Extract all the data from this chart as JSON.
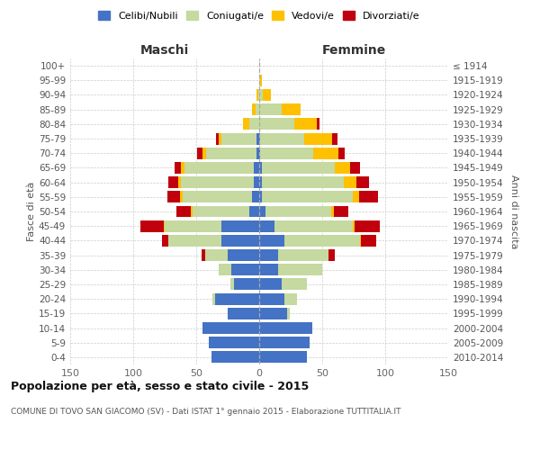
{
  "age_groups": [
    "0-4",
    "5-9",
    "10-14",
    "15-19",
    "20-24",
    "25-29",
    "30-34",
    "35-39",
    "40-44",
    "45-49",
    "50-54",
    "55-59",
    "60-64",
    "65-69",
    "70-74",
    "75-79",
    "80-84",
    "85-89",
    "90-94",
    "95-99",
    "100+"
  ],
  "birth_years": [
    "2010-2014",
    "2005-2009",
    "2000-2004",
    "1995-1999",
    "1990-1994",
    "1985-1989",
    "1980-1984",
    "1975-1979",
    "1970-1974",
    "1965-1969",
    "1960-1964",
    "1955-1959",
    "1950-1954",
    "1945-1949",
    "1940-1944",
    "1935-1939",
    "1930-1934",
    "1925-1929",
    "1920-1924",
    "1915-1919",
    "≤ 1914"
  ],
  "males": {
    "celibe": [
      38,
      40,
      45,
      25,
      35,
      20,
      22,
      25,
      30,
      30,
      8,
      6,
      4,
      4,
      2,
      2,
      0,
      0,
      0,
      0,
      0
    ],
    "coniugato": [
      0,
      0,
      0,
      0,
      2,
      3,
      10,
      18,
      42,
      45,
      45,
      55,
      58,
      55,
      40,
      28,
      8,
      3,
      1,
      0,
      0
    ],
    "vedovo": [
      0,
      0,
      0,
      0,
      0,
      0,
      0,
      0,
      0,
      1,
      1,
      2,
      2,
      3,
      3,
      2,
      5,
      3,
      1,
      0,
      0
    ],
    "divorziato": [
      0,
      0,
      0,
      0,
      0,
      0,
      0,
      3,
      5,
      18,
      12,
      10,
      8,
      5,
      4,
      2,
      0,
      0,
      0,
      0,
      0
    ]
  },
  "females": {
    "nubile": [
      38,
      40,
      42,
      22,
      20,
      18,
      15,
      15,
      20,
      12,
      5,
      2,
      2,
      2,
      1,
      1,
      0,
      0,
      0,
      0,
      0
    ],
    "coniugata": [
      0,
      0,
      0,
      2,
      10,
      20,
      35,
      40,
      60,
      62,
      52,
      72,
      65,
      58,
      42,
      35,
      28,
      18,
      3,
      1,
      0
    ],
    "vedova": [
      0,
      0,
      0,
      0,
      0,
      0,
      0,
      0,
      1,
      2,
      2,
      5,
      10,
      12,
      20,
      22,
      18,
      15,
      6,
      1,
      0
    ],
    "divorziata": [
      0,
      0,
      0,
      0,
      0,
      0,
      0,
      5,
      12,
      20,
      12,
      15,
      10,
      8,
      5,
      4,
      2,
      0,
      0,
      0,
      0
    ]
  },
  "colors": {
    "celibe": "#4472c4",
    "coniugato": "#c5d9a0",
    "vedovo": "#ffc000",
    "divorziato": "#c0000c"
  },
  "xlim": 150,
  "title": "Popolazione per età, sesso e stato civile - 2015",
  "subtitle": "COMUNE DI TOVO SAN GIACOMO (SV) - Dati ISTAT 1° gennaio 2015 - Elaborazione TUTTITALIA.IT",
  "legend_labels": [
    "Celibi/Nubili",
    "Coniugati/e",
    "Vedovi/e",
    "Divorziati/e"
  ],
  "ylabel_left": "Fasce di età",
  "ylabel_right": "Anni di nascita",
  "xlabel_left": "Maschi",
  "xlabel_right": "Femmine"
}
